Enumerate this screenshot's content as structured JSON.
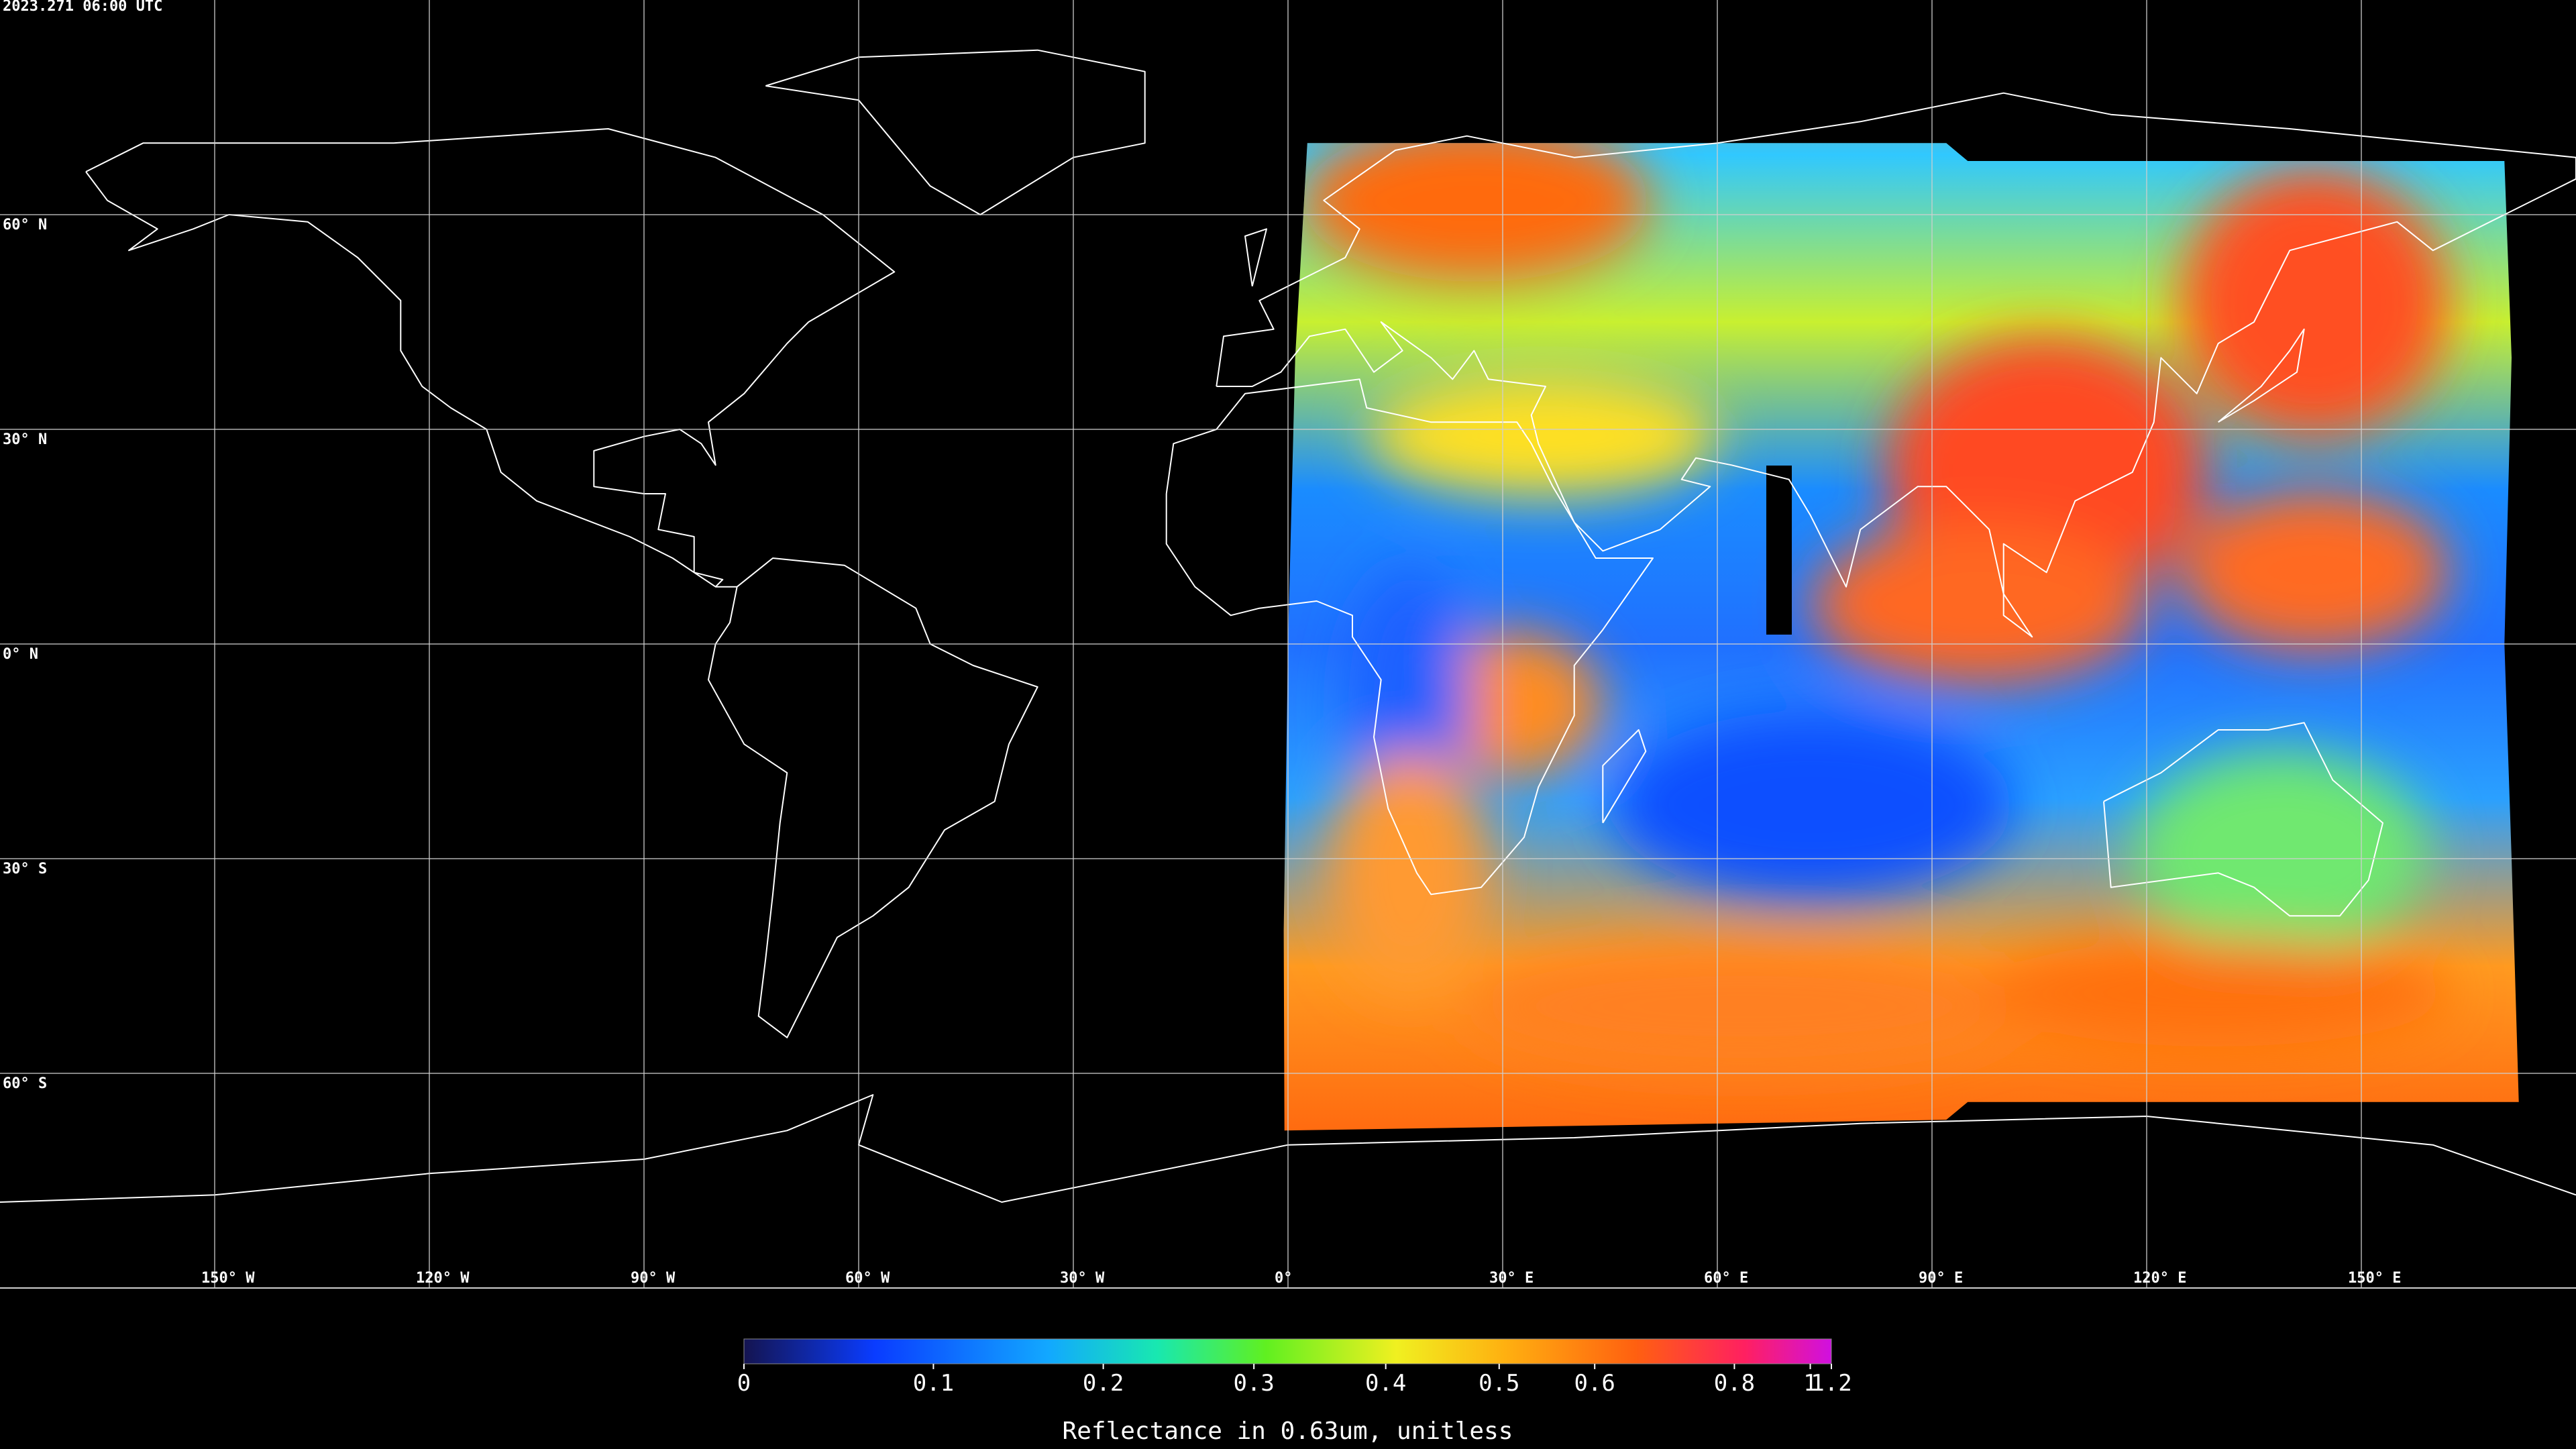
{
  "timestamp": "2023.271 06:00 UTC",
  "map": {
    "lat_lines": [
      {
        "value": 60,
        "label": "60° N"
      },
      {
        "value": 30,
        "label": "30° N"
      },
      {
        "value": 0,
        "label": "0° N"
      },
      {
        "value": -30,
        "label": "30° S"
      },
      {
        "value": -60,
        "label": "60° S"
      }
    ],
    "lon_lines": [
      {
        "value": -150,
        "label": "150° W"
      },
      {
        "value": -120,
        "label": "120° W"
      },
      {
        "value": -90,
        "label": "90° W"
      },
      {
        "value": -60,
        "label": "60° W"
      },
      {
        "value": -30,
        "label": "30° W"
      },
      {
        "value": 0,
        "label": "0°"
      },
      {
        "value": 30,
        "label": "30° E"
      },
      {
        "value": 60,
        "label": "60° E"
      },
      {
        "value": 90,
        "label": "90° E"
      },
      {
        "value": 120,
        "label": "120° E"
      },
      {
        "value": 150,
        "label": "150° E"
      }
    ]
  },
  "colorbar": {
    "label": "Reflectance in 0.63um, unitless",
    "lim": [
      0,
      1.2
    ],
    "ticks": [
      0,
      0.1,
      0.2,
      0.3,
      0.4,
      0.5,
      0.6,
      0.8,
      1,
      1.2
    ]
  }
}
